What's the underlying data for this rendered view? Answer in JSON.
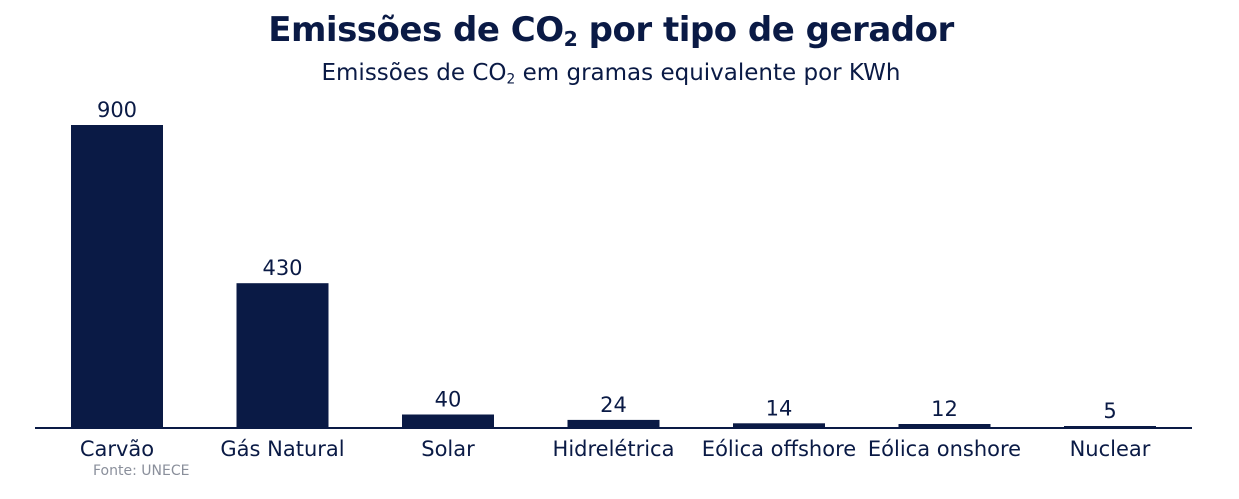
{
  "chart_data": {
    "type": "bar",
    "title_parts": [
      "Emissões de CO",
      "2",
      " por tipo de gerador"
    ],
    "subtitle_parts": [
      "Emissões de CO",
      "2",
      " em gramas equivalente por KWh"
    ],
    "categories": [
      "Carvão",
      "Gás Natural",
      "Solar",
      "Hidrelétrica",
      "Eólica offshore",
      "Eólica onshore",
      "Nuclear"
    ],
    "values": [
      900,
      430,
      40,
      24,
      14,
      12,
      5
    ],
    "data_labels": [
      "900",
      "430",
      "40",
      "24",
      "14",
      "12",
      "5"
    ],
    "ylim": [
      0,
      900
    ],
    "grid": false,
    "legend": "none",
    "bar_color": "#0a1a45",
    "source": "Fonte: UNECE"
  }
}
